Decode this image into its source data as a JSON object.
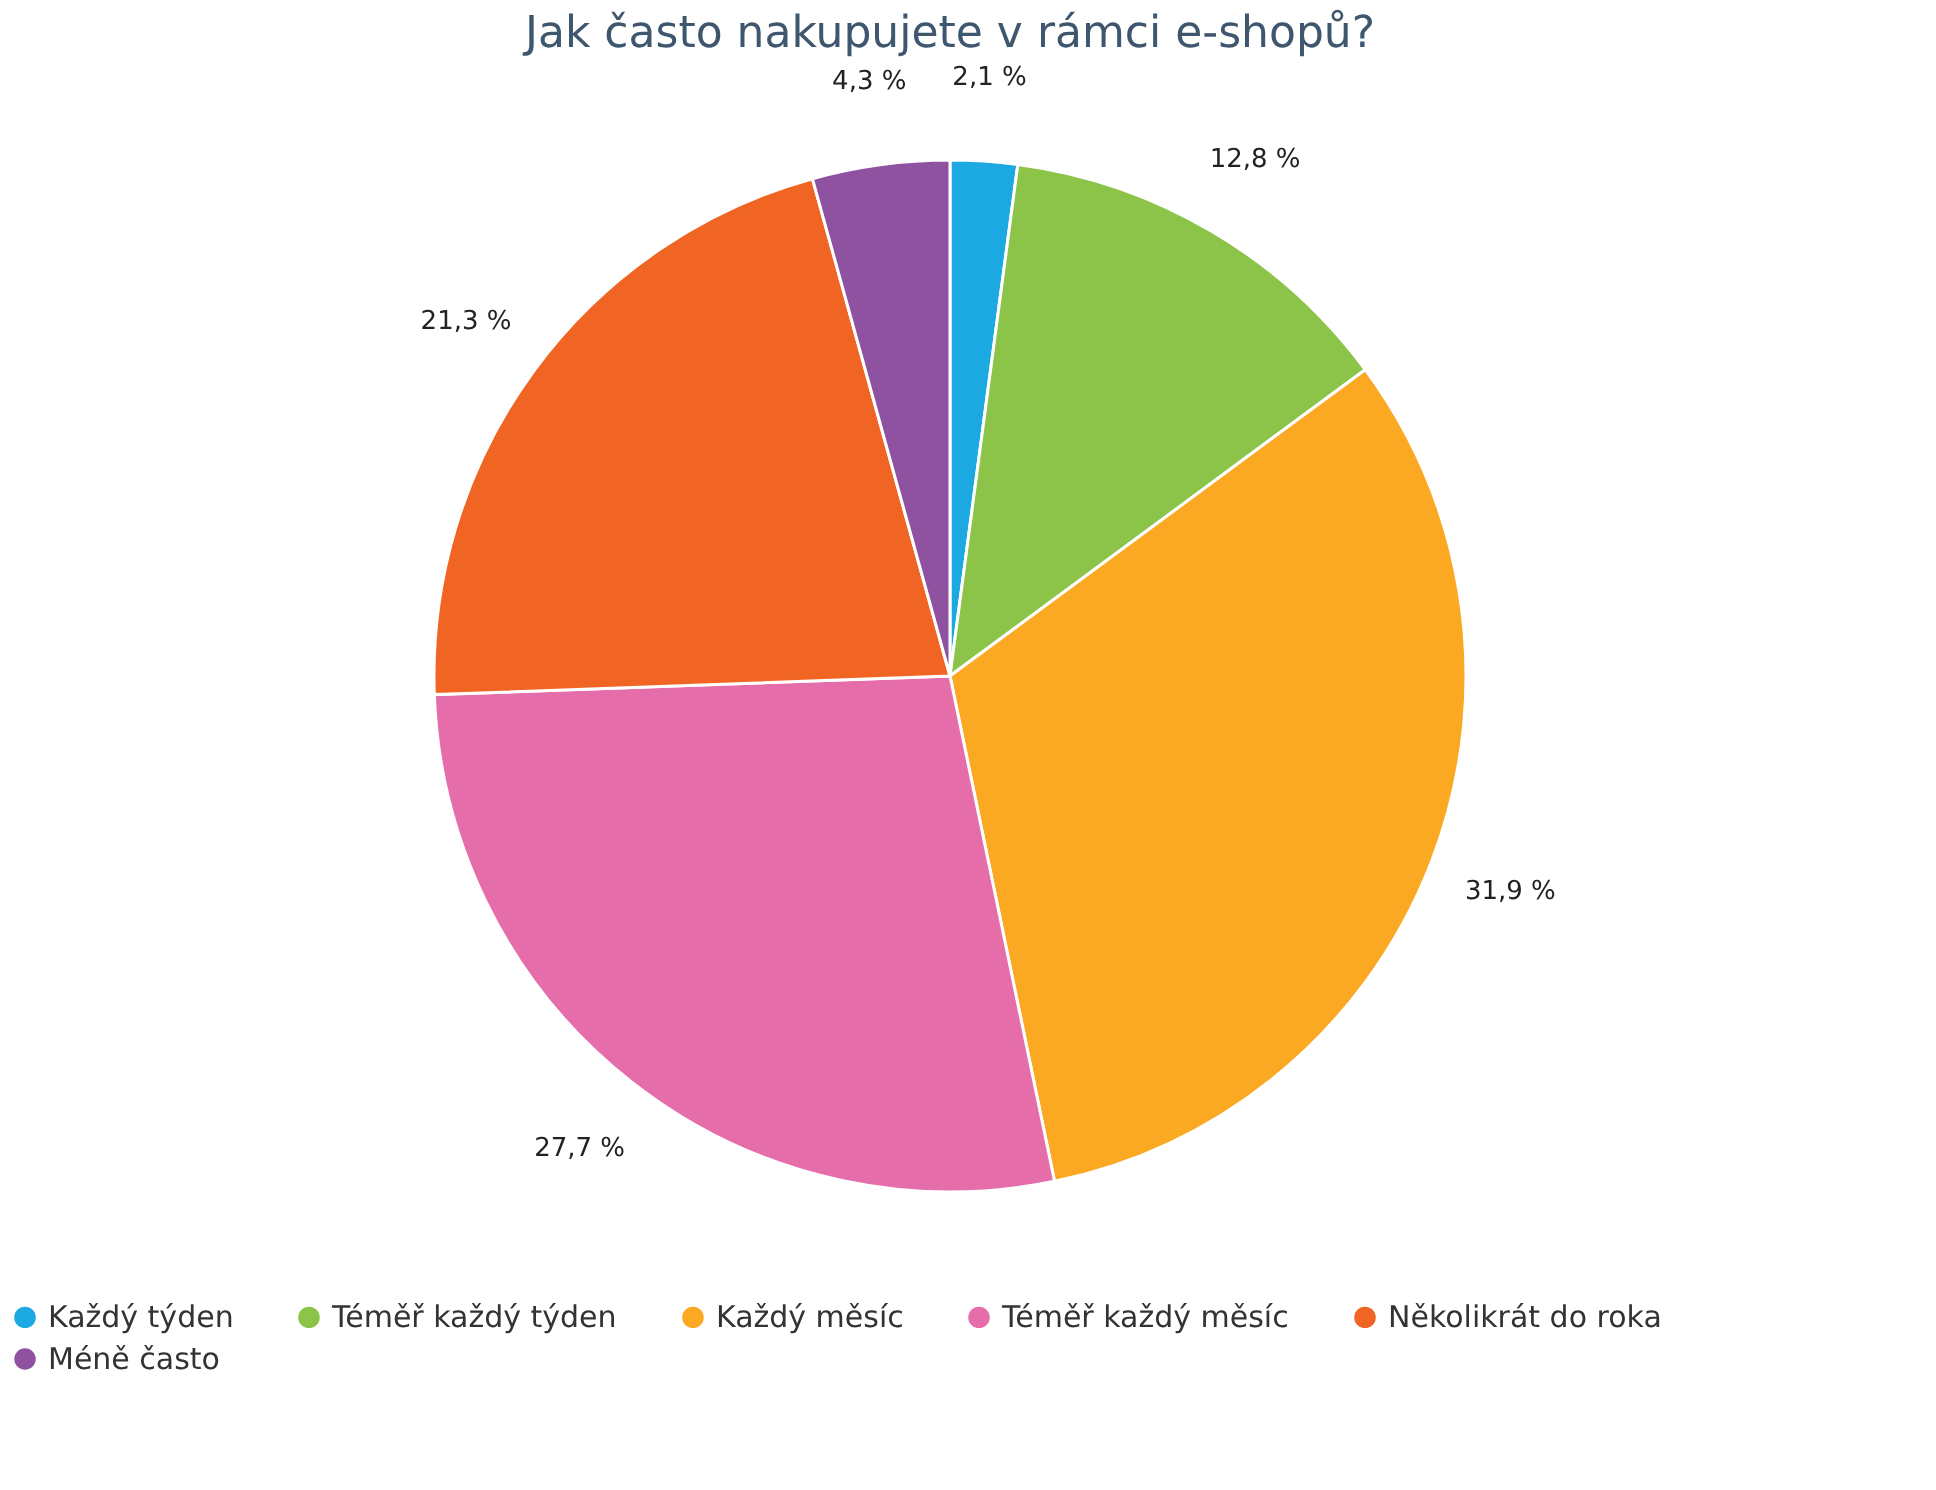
{
  "chart_data": {
    "type": "pie",
    "title": "Jak často nakupujete v rámci e-shopů?",
    "categories": [
      "Každý týden",
      "Téměř každý týden",
      "Každý měsíc",
      "Téměř každý měsíc",
      "Několikrát do roka",
      "Méně často"
    ],
    "values": [
      2.1,
      12.8,
      31.9,
      27.7,
      21.3,
      4.3
    ],
    "value_labels": [
      "2,1 %",
      "12,8 %",
      "31,9 %",
      "27,7 %",
      "21,3 %",
      "4,3 %"
    ],
    "colors": [
      "#1ca8e0",
      "#8bc449",
      "#fba823",
      "#e56daa",
      "#f06523",
      "#8e52a1"
    ],
    "legend": "bottom"
  }
}
